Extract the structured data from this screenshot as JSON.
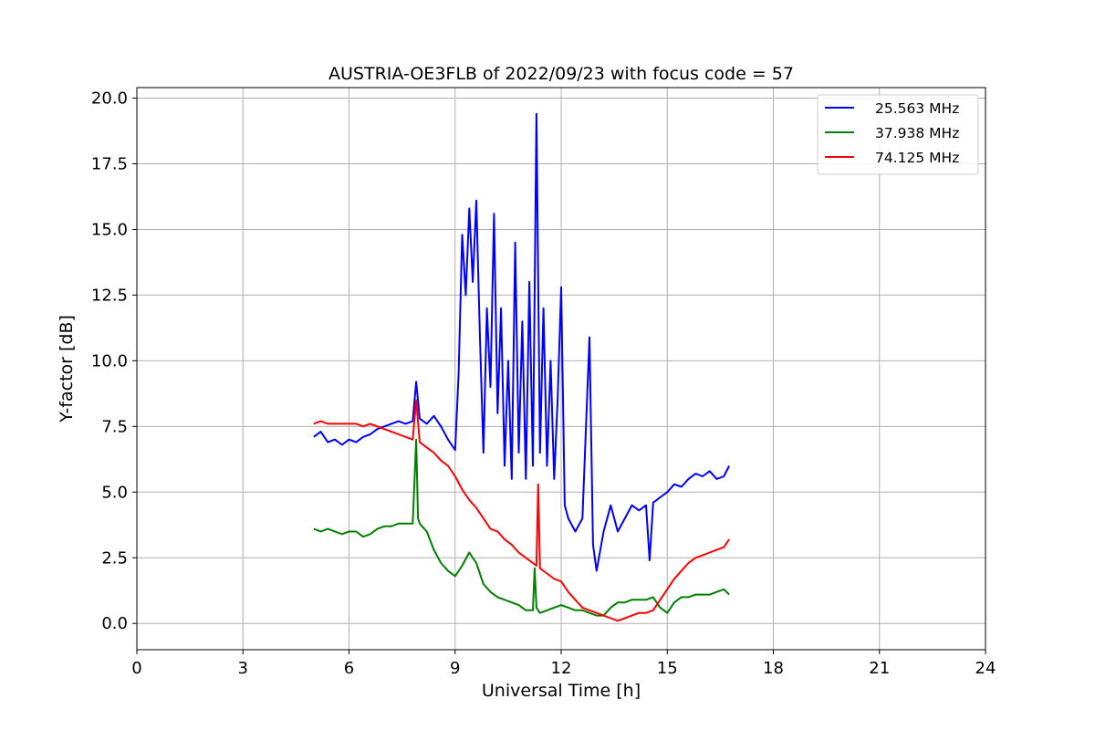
{
  "chart_data": {
    "type": "line",
    "title": "AUSTRIA-OE3FLB of 2022/09/23 with focus code = 57",
    "xlabel": "Universal Time [h]",
    "ylabel": "Y-factor [dB]",
    "xlim": [
      0,
      24
    ],
    "ylim": [
      -1.0,
      20.4
    ],
    "xticks": [
      0,
      3,
      6,
      9,
      12,
      15,
      18,
      21,
      24
    ],
    "xtick_labels": [
      "0",
      "3",
      "6",
      "9",
      "12",
      "15",
      "18",
      "21",
      "24"
    ],
    "yticks": [
      0,
      2.5,
      5,
      7.5,
      10,
      12.5,
      15,
      17.5,
      20
    ],
    "ytick_labels": [
      "0.0",
      "2.5",
      "5.0",
      "7.5",
      "10.0",
      "12.5",
      "15.0",
      "17.5",
      "20.0"
    ],
    "grid": true,
    "legend_position": "top-right",
    "series": [
      {
        "name": "25.563 MHz",
        "color": "#0000ff",
        "x": [
          5.0,
          5.2,
          5.4,
          5.6,
          5.8,
          6.0,
          6.2,
          6.4,
          6.6,
          6.8,
          7.0,
          7.2,
          7.4,
          7.6,
          7.8,
          7.9,
          8.0,
          8.2,
          8.4,
          8.6,
          8.8,
          9.0,
          9.1,
          9.2,
          9.3,
          9.4,
          9.5,
          9.6,
          9.7,
          9.8,
          9.9,
          10.0,
          10.1,
          10.2,
          10.3,
          10.4,
          10.5,
          10.6,
          10.7,
          10.8,
          10.9,
          11.0,
          11.1,
          11.2,
          11.3,
          11.4,
          11.5,
          11.6,
          11.7,
          11.8,
          11.9,
          12.0,
          12.1,
          12.2,
          12.4,
          12.6,
          12.8,
          12.9,
          13.0,
          13.2,
          13.4,
          13.6,
          13.8,
          14.0,
          14.2,
          14.4,
          14.5,
          14.6,
          14.8,
          15.0,
          15.2,
          15.4,
          15.6,
          15.8,
          16.0,
          16.2,
          16.4,
          16.6,
          16.75
        ],
        "y": [
          7.1,
          7.3,
          6.9,
          7.0,
          6.8,
          7.0,
          6.9,
          7.1,
          7.2,
          7.4,
          7.5,
          7.6,
          7.7,
          7.6,
          7.7,
          9.2,
          7.8,
          7.6,
          7.9,
          7.5,
          7.0,
          6.6,
          9.5,
          14.8,
          12.5,
          15.8,
          13.0,
          16.1,
          11.0,
          6.5,
          12.0,
          9.0,
          15.6,
          8.0,
          12.0,
          6.0,
          10.0,
          5.5,
          14.5,
          6.5,
          11.5,
          5.5,
          13.0,
          6.0,
          19.4,
          6.5,
          12.0,
          6.0,
          10.0,
          5.5,
          8.5,
          12.8,
          4.5,
          4.0,
          3.5,
          4.0,
          10.9,
          3.0,
          2.0,
          3.5,
          4.5,
          3.5,
          4.0,
          4.5,
          4.3,
          4.5,
          2.4,
          4.6,
          4.8,
          5.0,
          5.3,
          5.2,
          5.5,
          5.7,
          5.6,
          5.8,
          5.5,
          5.6,
          6.0
        ]
      },
      {
        "name": "37.938 MHz",
        "color": "#008000",
        "x": [
          5.0,
          5.2,
          5.4,
          5.6,
          5.8,
          6.0,
          6.2,
          6.4,
          6.6,
          6.8,
          7.0,
          7.2,
          7.4,
          7.6,
          7.8,
          7.9,
          7.95,
          8.0,
          8.2,
          8.4,
          8.6,
          8.8,
          9.0,
          9.2,
          9.4,
          9.6,
          9.8,
          10.0,
          10.2,
          10.4,
          10.6,
          10.8,
          11.0,
          11.2,
          11.25,
          11.3,
          11.4,
          11.6,
          11.8,
          12.0,
          12.2,
          12.4,
          12.6,
          12.8,
          13.0,
          13.2,
          13.4,
          13.6,
          13.8,
          14.0,
          14.2,
          14.4,
          14.6,
          14.8,
          15.0,
          15.2,
          15.4,
          15.6,
          15.8,
          16.0,
          16.2,
          16.4,
          16.6,
          16.75
        ],
        "y": [
          3.6,
          3.5,
          3.6,
          3.5,
          3.4,
          3.5,
          3.5,
          3.3,
          3.4,
          3.6,
          3.7,
          3.7,
          3.8,
          3.8,
          3.8,
          7.0,
          4.0,
          3.8,
          3.5,
          2.8,
          2.3,
          2.0,
          1.8,
          2.2,
          2.7,
          2.3,
          1.5,
          1.2,
          1.0,
          0.9,
          0.8,
          0.7,
          0.5,
          0.5,
          2.1,
          0.6,
          0.4,
          0.5,
          0.6,
          0.7,
          0.6,
          0.5,
          0.5,
          0.4,
          0.3,
          0.3,
          0.6,
          0.8,
          0.8,
          0.9,
          0.9,
          0.9,
          1.0,
          0.6,
          0.4,
          0.8,
          1.0,
          1.0,
          1.1,
          1.1,
          1.1,
          1.2,
          1.3,
          1.1
        ]
      },
      {
        "name": "74.125 MHz",
        "color": "#ff0000",
        "x": [
          5.0,
          5.2,
          5.4,
          5.6,
          5.8,
          6.0,
          6.2,
          6.4,
          6.6,
          6.8,
          7.0,
          7.2,
          7.4,
          7.6,
          7.8,
          7.9,
          8.0,
          8.2,
          8.4,
          8.6,
          8.8,
          9.0,
          9.2,
          9.4,
          9.6,
          9.8,
          10.0,
          10.2,
          10.4,
          10.6,
          10.8,
          11.0,
          11.2,
          11.3,
          11.35,
          11.4,
          11.6,
          11.8,
          12.0,
          12.2,
          12.4,
          12.6,
          12.8,
          13.0,
          13.2,
          13.4,
          13.6,
          13.8,
          14.0,
          14.2,
          14.4,
          14.6,
          14.8,
          15.0,
          15.2,
          15.4,
          15.6,
          15.8,
          16.0,
          16.2,
          16.4,
          16.6,
          16.75
        ],
        "y": [
          7.6,
          7.7,
          7.6,
          7.6,
          7.6,
          7.6,
          7.6,
          7.5,
          7.6,
          7.5,
          7.4,
          7.3,
          7.2,
          7.1,
          7.0,
          8.5,
          6.9,
          6.7,
          6.5,
          6.2,
          6.0,
          5.6,
          5.1,
          4.7,
          4.4,
          4.0,
          3.6,
          3.5,
          3.2,
          3.0,
          2.7,
          2.5,
          2.3,
          2.2,
          5.3,
          2.1,
          1.9,
          1.7,
          1.6,
          1.2,
          0.9,
          0.6,
          0.5,
          0.4,
          0.3,
          0.2,
          0.1,
          0.2,
          0.3,
          0.4,
          0.4,
          0.5,
          0.9,
          1.3,
          1.7,
          2.0,
          2.3,
          2.5,
          2.6,
          2.7,
          2.8,
          2.9,
          3.2
        ]
      }
    ]
  }
}
